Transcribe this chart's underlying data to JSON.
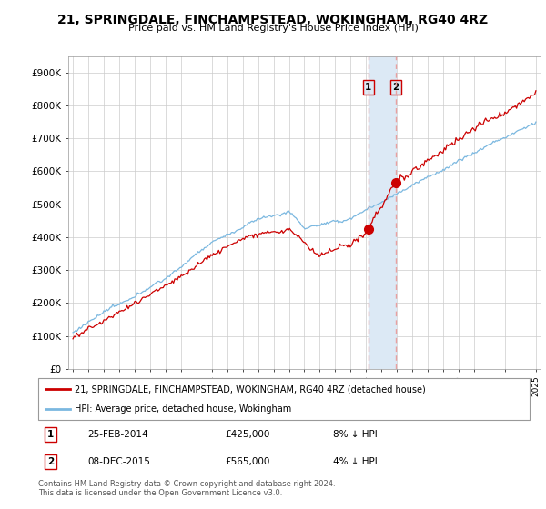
{
  "title": "21, SPRINGDALE, FINCHAMPSTEAD, WOKINGHAM, RG40 4RZ",
  "subtitle": "Price paid vs. HM Land Registry's House Price Index (HPI)",
  "ylabel_ticks": [
    "£0",
    "£100K",
    "£200K",
    "£300K",
    "£400K",
    "£500K",
    "£600K",
    "£700K",
    "£800K",
    "£900K"
  ],
  "ytick_values": [
    0,
    100000,
    200000,
    300000,
    400000,
    500000,
    600000,
    700000,
    800000,
    900000
  ],
  "ylim": [
    0,
    950000
  ],
  "xlim_left": 1994.7,
  "xlim_right": 2025.3,
  "hpi_color": "#7bb8e0",
  "price_color": "#cc0000",
  "annotation1": {
    "label": "1",
    "date_str": "25-FEB-2014",
    "price": 425000,
    "pct": "8% ↓ HPI",
    "x_year": 2014.15
  },
  "annotation2": {
    "label": "2",
    "date_str": "08-DEC-2015",
    "price": 565000,
    "pct": "4% ↓ HPI",
    "x_year": 2015.92
  },
  "legend_line1": "21, SPRINGDALE, FINCHAMPSTEAD, WOKINGHAM, RG40 4RZ (detached house)",
  "legend_line2": "HPI: Average price, detached house, Wokingham",
  "footer": "Contains HM Land Registry data © Crown copyright and database right 2024.\nThis data is licensed under the Open Government Licence v3.0.",
  "box_fill": "#dce9f5",
  "box_edge": "#cc0000",
  "dashed_line_color": "#e8a0a0",
  "span_color": "#dce9f5"
}
